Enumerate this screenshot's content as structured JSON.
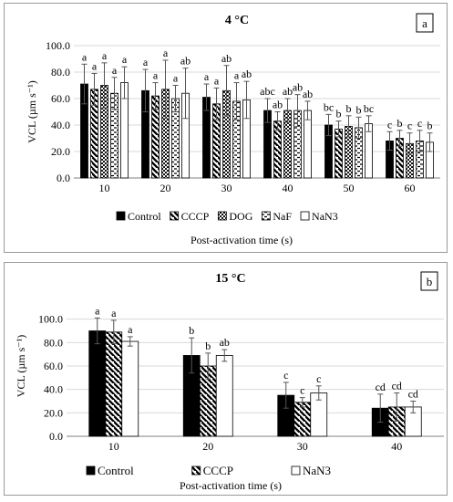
{
  "chart_data": [
    {
      "type": "bar",
      "panel_label": "a",
      "title": "4 °C",
      "ylabel": "VCL (µm s⁻¹)",
      "xlabel": "Post-activation time (s)",
      "ylim": [
        0,
        100
      ],
      "yticks": [
        "0.0",
        "20.0",
        "40.0",
        "60.0",
        "80.0",
        "100.0"
      ],
      "categories": [
        "10",
        "20",
        "30",
        "40",
        "50",
        "60"
      ],
      "legend_position": "bottom",
      "series": [
        {
          "name": "Control",
          "pattern": "solid",
          "values": [
            71,
            66,
            61,
            51,
            40,
            28
          ],
          "errors": [
            15,
            16,
            10,
            9,
            8,
            7
          ],
          "letters": [
            "a",
            "a",
            "a",
            "abc",
            "bc",
            "c"
          ]
        },
        {
          "name": "CCCP",
          "pattern": "diagonal",
          "values": [
            67,
            62,
            56,
            43,
            37,
            30
          ],
          "errors": [
            12,
            10,
            12,
            7,
            6,
            6
          ],
          "letters": [
            "a",
            "a",
            "a",
            "ab",
            "b",
            "b"
          ]
        },
        {
          "name": "DOG",
          "pattern": "dots",
          "values": [
            70,
            67,
            66,
            51,
            39,
            26
          ],
          "errors": [
            17,
            22,
            19,
            9,
            8,
            8
          ],
          "letters": [
            "a",
            "a",
            "ab",
            "ab",
            "b",
            "c"
          ]
        },
        {
          "name": "NaF",
          "pattern": "dashes",
          "values": [
            64,
            60,
            58,
            51,
            38,
            28
          ],
          "errors": [
            12,
            10,
            14,
            12,
            8,
            8
          ],
          "letters": [
            "a",
            "a",
            "a",
            "ab",
            "b",
            "c"
          ]
        },
        {
          "name": "NaN3",
          "pattern": "hollow",
          "values": [
            72,
            64,
            59,
            51,
            41,
            27
          ],
          "errors": [
            12,
            19,
            14,
            7,
            6,
            7
          ],
          "letters": [
            "a",
            "ab",
            "ab",
            "ab",
            "bc",
            "b"
          ]
        }
      ]
    },
    {
      "type": "bar",
      "panel_label": "b",
      "title": "15 °C",
      "ylabel": "VCL (µm s⁻¹)",
      "xlabel": "Post-activation time (s)",
      "ylim": [
        0,
        120
      ],
      "yticks": [
        "0.0",
        "20.0",
        "40.0",
        "60.0",
        "80.0",
        "100.0"
      ],
      "categories": [
        "10",
        "20",
        "30",
        "40"
      ],
      "legend_position": "bottom",
      "series": [
        {
          "name": "Control",
          "pattern": "solid",
          "values": [
            90,
            69,
            35,
            24
          ],
          "errors": [
            11,
            15,
            11,
            12
          ],
          "letters": [
            "a",
            "b",
            "c",
            "cd"
          ]
        },
        {
          "name": "CCCP",
          "pattern": "diagonal",
          "values": [
            89,
            60,
            29,
            25
          ],
          "errors": [
            10,
            11,
            4,
            12
          ],
          "letters": [
            "a",
            "b",
            "c",
            "cd"
          ]
        },
        {
          "name": "NaN3",
          "pattern": "hollow",
          "values": [
            81,
            69,
            37,
            25
          ],
          "errors": [
            4,
            5,
            6,
            5
          ],
          "letters": [
            "a",
            "ab",
            "c",
            "cd"
          ]
        }
      ]
    }
  ]
}
